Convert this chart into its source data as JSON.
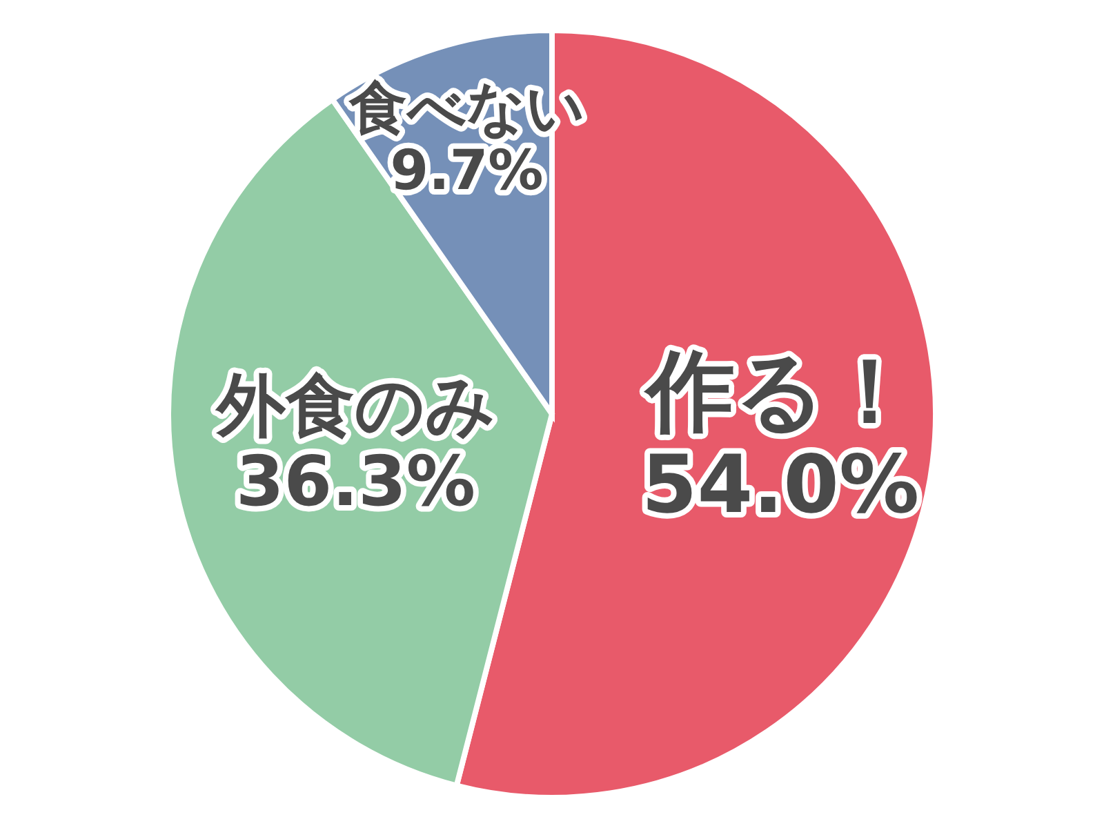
{
  "chart_data": {
    "type": "pie",
    "categories": [
      "作る！",
      "外食のみ",
      "食べない"
    ],
    "values": [
      54.0,
      36.3,
      9.7
    ],
    "value_labels": [
      "54.0%",
      "36.3%",
      "9.7%"
    ],
    "colors": [
      "#e85a6a",
      "#93cca6",
      "#7590b8"
    ]
  }
}
